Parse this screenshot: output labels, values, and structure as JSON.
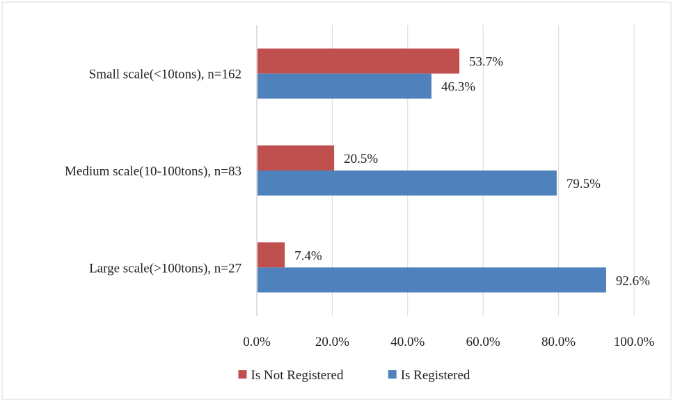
{
  "chart_data": {
    "type": "bar",
    "orientation": "horizontal",
    "categories": [
      "Small scale(<10tons), n=162",
      "Medium scale(10-100tons), n=83",
      "Large scale(>100tons), n=27"
    ],
    "series": [
      {
        "name": "Is Not Registered",
        "color": "#c0504d",
        "values": [
          53.7,
          20.5,
          7.4
        ],
        "labels": [
          "53.7%",
          "20.5%",
          "7.4%"
        ]
      },
      {
        "name": "Is Registered",
        "color": "#4f81bd",
        "values": [
          46.3,
          79.5,
          92.6
        ],
        "labels": [
          "46.3%",
          "79.5%",
          "92.6%"
        ]
      }
    ],
    "xlim": [
      0,
      100
    ],
    "x_ticks": [
      "0.0%",
      "20.0%",
      "40.0%",
      "60.0%",
      "80.0%",
      "100.0%"
    ],
    "grid": true,
    "legend": "bottom",
    "title": "",
    "xlabel": "",
    "ylabel": ""
  }
}
